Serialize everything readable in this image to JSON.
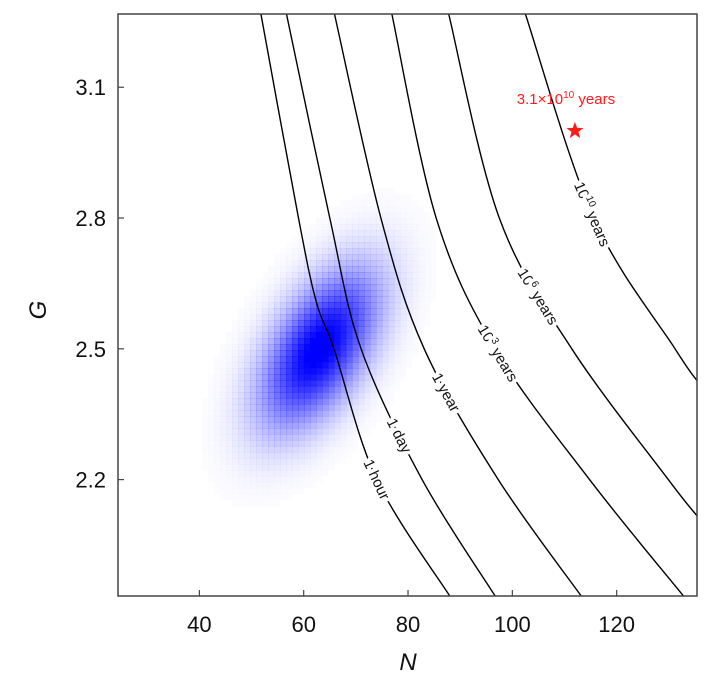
{
  "chart_data": {
    "type": "heatmap",
    "xlabel": "N",
    "ylabel": "G",
    "xlim": [
      24.4,
      135.4
    ],
    "ylim": [
      1.933,
      3.268
    ],
    "xticks": [
      40,
      60,
      80,
      100,
      120
    ],
    "yticks": [
      2.2,
      2.5,
      2.8,
      3.1
    ],
    "grid": false,
    "colors": {
      "density": "#0000ff",
      "contour": "#000000",
      "marker": "#ff1a1a",
      "frame": "#444444"
    },
    "density": {
      "mean_N": 63,
      "mean_G": 2.5,
      "sd_N": 7.5,
      "sd_G": 0.12,
      "correlation": 0.55
    },
    "contours": [
      {
        "label": "1 hour",
        "label_G": 2.2,
        "points": [
          [
            51.8,
            3.268
          ],
          [
            59,
            2.8
          ],
          [
            62.4,
            2.608
          ],
          [
            65.8,
            2.5
          ],
          [
            74,
            2.2
          ],
          [
            88,
            1.933
          ]
        ]
      },
      {
        "label": "1 day",
        "label_G": 2.3,
        "points": [
          [
            56.7,
            3.268
          ],
          [
            65,
            2.8
          ],
          [
            71,
            2.5
          ],
          [
            82.7,
            2.2
          ],
          [
            96.7,
            1.933
          ]
        ]
      },
      {
        "label": "1 year",
        "label_G": 2.4,
        "points": [
          [
            65.9,
            3.268
          ],
          [
            74.8,
            2.8
          ],
          [
            83.1,
            2.5
          ],
          [
            97.3,
            2.2
          ],
          [
            113.2,
            1.933
          ]
        ]
      },
      {
        "label": "10",
        "sup": "3",
        "suffix": " years",
        "label_G": 2.49,
        "points": [
          [
            76.9,
            3.268
          ],
          [
            85.4,
            2.8
          ],
          [
            96.7,
            2.5
          ],
          [
            114.8,
            2.2
          ],
          [
            132.8,
            1.933
          ]
        ]
      },
      {
        "label": "10",
        "sup": "6",
        "suffix": " years",
        "label_G": 2.62,
        "points": [
          [
            87.8,
            3.268
          ],
          [
            97.5,
            2.8
          ],
          [
            111.4,
            2.5
          ],
          [
            129.9,
            2.2
          ],
          [
            135.4,
            2.117
          ]
        ]
      },
      {
        "label": "10",
        "sup": "10",
        "suffix": " years",
        "label_G": 2.81,
        "points": [
          [
            102.5,
            3.268
          ],
          [
            115.6,
            2.8
          ],
          [
            131.2,
            2.5
          ],
          [
            135.4,
            2.427
          ]
        ]
      }
    ],
    "marker": {
      "N": 112,
      "G": 3.0,
      "symbol": "star",
      "label": "3.1×10",
      "label_sup": "10",
      "label_suffix": " years"
    }
  }
}
